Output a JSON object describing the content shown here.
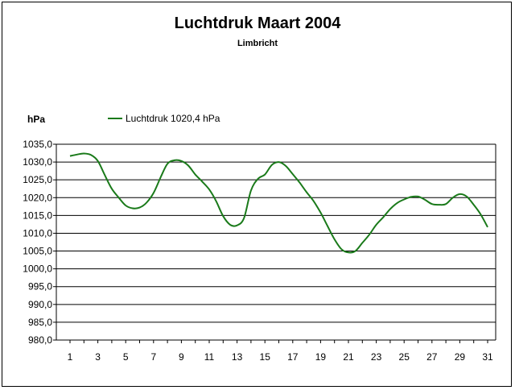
{
  "chart_data": {
    "type": "line",
    "title": "Luchtdruk Maart 2004",
    "subtitle": "Limbricht",
    "ylabel": "hPa",
    "xlabel": "",
    "ylim": [
      980,
      1035
    ],
    "yticks": [
      "1035,0",
      "1030,0",
      "1025,0",
      "1020,0",
      "1015,0",
      "1010,0",
      "1005,0",
      "1000,0",
      "995,0",
      "990,0",
      "985,0",
      "980,0"
    ],
    "ytick_values": [
      1035,
      1030,
      1025,
      1020,
      1015,
      1010,
      1005,
      1000,
      995,
      990,
      985,
      980
    ],
    "xlim": [
      1,
      31
    ],
    "xticks": [
      "1",
      "3",
      "5",
      "7",
      "9",
      "11",
      "13",
      "15",
      "17",
      "19",
      "21",
      "23",
      "25",
      "27",
      "29",
      "31"
    ],
    "xtick_values": [
      1,
      3,
      5,
      7,
      9,
      11,
      13,
      15,
      17,
      19,
      21,
      23,
      25,
      27,
      29,
      31
    ],
    "grid": true,
    "legend_position": "top-left",
    "series": [
      {
        "name": "Luchtdruk 1020,4 hPa",
        "color": "#1a7a1a",
        "x": [
          1,
          1.5,
          2,
          2.5,
          3,
          3.5,
          4,
          4.5,
          5,
          5.5,
          6,
          6.5,
          7,
          7.5,
          8,
          8.5,
          9,
          9.5,
          10,
          10.5,
          11,
          11.5,
          12,
          12.5,
          13,
          13.5,
          14,
          14.5,
          15,
          15.5,
          16,
          16.5,
          17,
          17.5,
          18,
          18.5,
          19,
          19.5,
          20,
          20.5,
          21,
          21.5,
          22,
          22.5,
          23,
          23.5,
          24,
          24.5,
          25,
          25.5,
          26,
          26.5,
          27,
          27.5,
          28,
          28.5,
          29,
          29.5,
          30,
          30.5,
          31
        ],
        "values": [
          1031.7,
          1032.1,
          1032.4,
          1032.0,
          1030.3,
          1026.3,
          1022.5,
          1020.0,
          1017.8,
          1017.0,
          1017.2,
          1018.6,
          1021.3,
          1025.6,
          1029.5,
          1030.5,
          1030.3,
          1029.0,
          1026.5,
          1024.5,
          1022.3,
          1019.0,
          1014.8,
          1012.4,
          1012.2,
          1014.3,
          1022.0,
          1025.3,
          1026.5,
          1029.2,
          1030.0,
          1028.9,
          1026.6,
          1024.2,
          1021.5,
          1019.0,
          1015.8,
          1012.0,
          1008.3,
          1005.5,
          1004.6,
          1005.0,
          1007.3,
          1009.6,
          1012.4,
          1014.5,
          1016.8,
          1018.5,
          1019.5,
          1020.2,
          1020.3,
          1019.4,
          1018.2,
          1018.0,
          1018.2,
          1020.0,
          1021.0,
          1020.3,
          1018.0,
          1015.3,
          1011.7
        ]
      }
    ]
  }
}
